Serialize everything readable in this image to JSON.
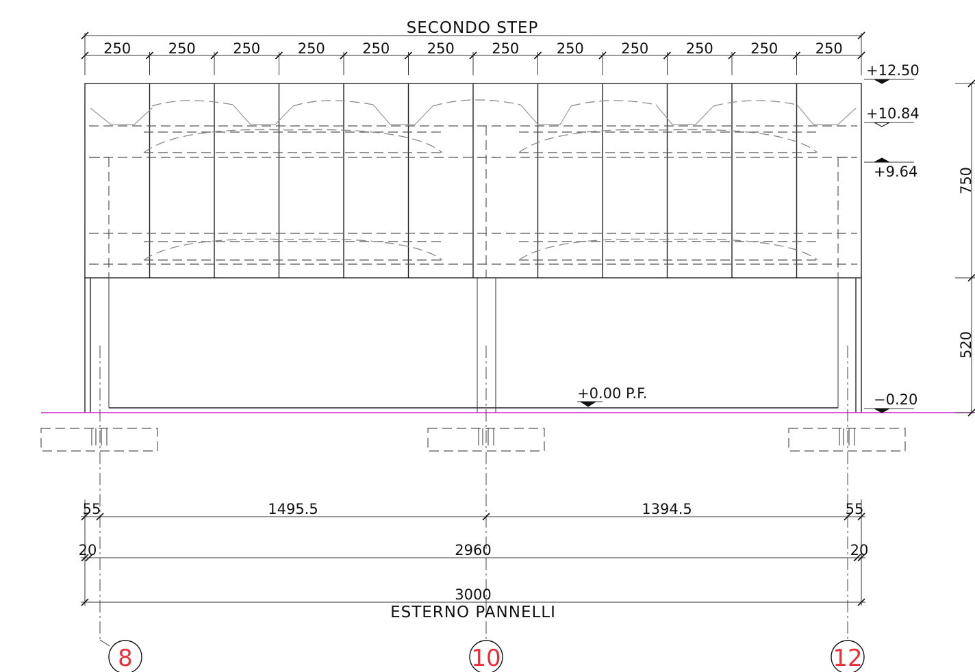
{
  "title_top": "SECONDO STEP",
  "top_dims": [
    "250",
    "250",
    "250",
    "250",
    "250",
    "250",
    "250",
    "250",
    "250",
    "250",
    "250",
    "250"
  ],
  "levels": {
    "l1": "+12.50",
    "l2": "+10.84",
    "l3": "+9.64",
    "l4": "−0.20",
    "floor": "+0.00 P.F."
  },
  "right_dims": {
    "upper": "750",
    "lower": "520"
  },
  "bottom_dims": {
    "row1": {
      "left": "55",
      "mid1": "1495.5",
      "mid2": "1394.5",
      "right": "55"
    },
    "row2": {
      "left": "20",
      "mid": "2960",
      "right": "20"
    },
    "row3": {
      "total": "3000",
      "caption": "ESTERNO PANNELLI"
    }
  },
  "grid_labels": [
    "8",
    "10",
    "12"
  ],
  "colors": {
    "grid_label": "#e8303a",
    "ground_line": "#d020d0"
  }
}
